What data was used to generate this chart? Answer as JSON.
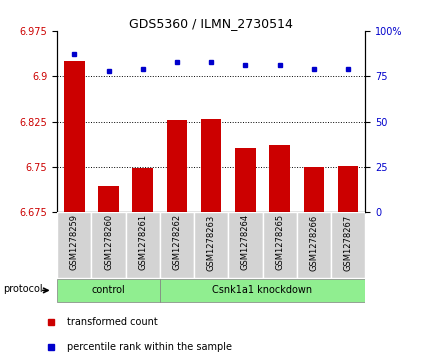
{
  "title": "GDS5360 / ILMN_2730514",
  "samples": [
    "GSM1278259",
    "GSM1278260",
    "GSM1278261",
    "GSM1278262",
    "GSM1278263",
    "GSM1278264",
    "GSM1278265",
    "GSM1278266",
    "GSM1278267"
  ],
  "bar_values": [
    6.925,
    6.718,
    6.748,
    6.828,
    6.83,
    6.782,
    6.786,
    6.75,
    6.752
  ],
  "dot_values": [
    87,
    78,
    79,
    83,
    83,
    81,
    81,
    79,
    79
  ],
  "ylim_left": [
    6.675,
    6.975
  ],
  "ylim_right": [
    0,
    100
  ],
  "yticks_left": [
    6.675,
    6.75,
    6.825,
    6.9,
    6.975
  ],
  "yticks_right": [
    0,
    25,
    50,
    75,
    100
  ],
  "bar_color": "#cc0000",
  "dot_color": "#0000cc",
  "bg_xticklabel": "#d3d3d3",
  "control_label": "control",
  "knockdown_label": "Csnk1a1 knockdown",
  "protocol_label": "protocol",
  "legend_bar_label": "transformed count",
  "legend_dot_label": "percentile rank within the sample",
  "group_color": "#90ee90",
  "ylabel_left_color": "#cc0000",
  "ylabel_right_color": "#0000cc",
  "bar_width": 0.6,
  "n_control": 3,
  "n_knockdown": 6
}
